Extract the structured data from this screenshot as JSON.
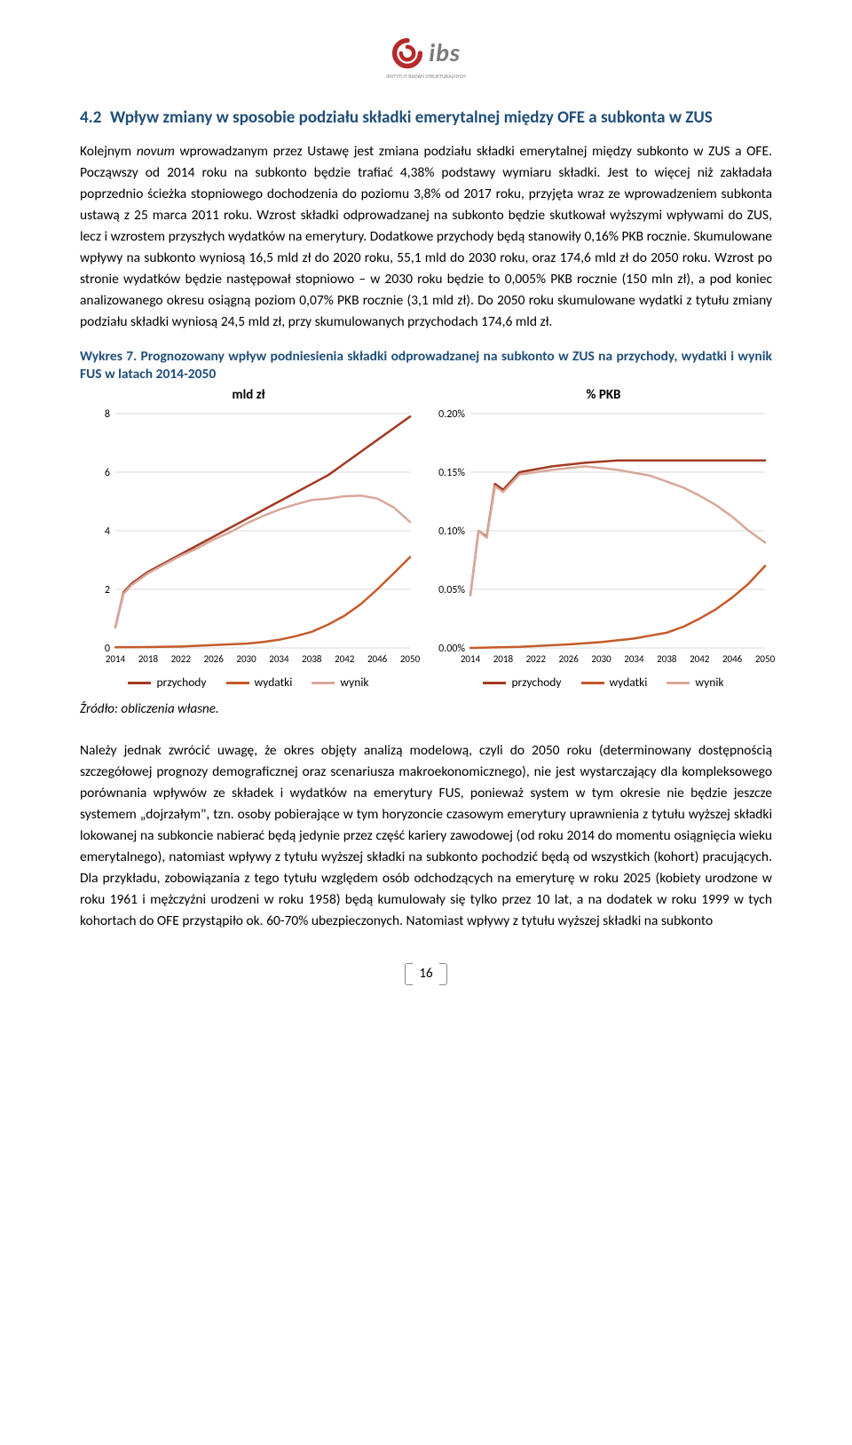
{
  "logo": {
    "text": "ibs",
    "subtitle": "INSTYTUT BADAŃ STRUKTURALNYCH"
  },
  "section": {
    "number": "4.2",
    "title": "Wpływ zmiany w sposobie podziału składki emerytalnej między OFE a subkonta w ZUS"
  },
  "para1_pre": "Kolejnym ",
  "para1_italic": "novum",
  "para1_post": " wprowadzanym przez Ustawę jest zmiana podziału składki emerytalnej między subkonto w ZUS a OFE. Począwszy od 2014 roku na subkonto będzie trafiać 4,38% podstawy wymiaru składki. Jest to więcej niż zakładała poprzednio ścieżka stopniowego dochodzenia do poziomu 3,8% od 2017 roku, przyjęta wraz ze wprowadzeniem subkonta ustawą z 25 marca 2011 roku. Wzrost składki odprowadzanej na subkonto będzie skutkował wyższymi wpływami do ZUS, lecz i wzrostem przyszłych wydatków na emerytury. Dodatkowe przychody będą stanowiły 0,16% PKB rocznie. Skumulowane wpływy na subkonto wyniosą 16,5 mld zł do 2020 roku, 55,1 mld do 2030 roku, oraz 174,6 mld zł do 2050 roku. Wzrost po stronie wydatków będzie następował stopniowo – w 2030 roku będzie to 0,005% PKB rocznie (150 mln zł), a pod koniec analizowanego okresu osiągną poziom 0,07% PKB rocznie (3,1 mld zł). Do 2050 roku skumulowane wydatki z tytułu zmiany podziału składki wyniosą 24,5 mld zł, przy skumulowanych przychodach 174,6 mld zł.",
  "figure": {
    "label": "Wykres 7. Prognozowany wpływ podniesienia składki odprowadzanej na subkonto w ZUS na przychody, wydatki i wynik FUS w latach 2014-2050",
    "left_subtitle": "mld zł",
    "right_subtitle": "% PKB"
  },
  "chart_left": {
    "type": "line",
    "xlim": [
      2014,
      2050
    ],
    "ylim": [
      0,
      8
    ],
    "yticks": [
      0,
      2,
      4,
      6,
      8
    ],
    "xticks": [
      2014,
      2018,
      2022,
      2026,
      2030,
      2034,
      2038,
      2042,
      2046,
      2050
    ],
    "grid_color": "#d9d9d9",
    "background": "#ffffff",
    "line_width": 2.5,
    "series": [
      {
        "name": "przychody",
        "color": "#a13a21",
        "x": [
          2014,
          2015,
          2016,
          2018,
          2020,
          2022,
          2024,
          2026,
          2028,
          2030,
          2032,
          2034,
          2036,
          2038,
          2040,
          2042,
          2044,
          2046,
          2048,
          2050
        ],
        "y": [
          0.7,
          1.9,
          2.2,
          2.6,
          2.9,
          3.2,
          3.5,
          3.8,
          4.1,
          4.4,
          4.7,
          5.0,
          5.3,
          5.6,
          5.9,
          6.3,
          6.7,
          7.1,
          7.5,
          7.9
        ]
      },
      {
        "name": "wydatki",
        "color": "#c55a2a",
        "x": [
          2014,
          2018,
          2022,
          2026,
          2030,
          2032,
          2034,
          2036,
          2038,
          2040,
          2042,
          2044,
          2046,
          2048,
          2050
        ],
        "y": [
          0.02,
          0.03,
          0.05,
          0.1,
          0.15,
          0.2,
          0.28,
          0.4,
          0.55,
          0.8,
          1.1,
          1.5,
          2.0,
          2.55,
          3.1
        ]
      },
      {
        "name": "wynik",
        "color": "#d9a79a",
        "x": [
          2014,
          2015,
          2016,
          2018,
          2020,
          2022,
          2024,
          2026,
          2028,
          2030,
          2032,
          2034,
          2036,
          2038,
          2040,
          2042,
          2044,
          2046,
          2048,
          2050
        ],
        "y": [
          0.7,
          1.85,
          2.15,
          2.55,
          2.85,
          3.15,
          3.4,
          3.7,
          3.95,
          4.25,
          4.5,
          4.72,
          4.9,
          5.05,
          5.1,
          5.18,
          5.2,
          5.1,
          4.8,
          4.3
        ]
      }
    ]
  },
  "chart_right": {
    "type": "line",
    "xlim": [
      2014,
      2050
    ],
    "ylim": [
      0,
      0.2
    ],
    "yticks": [
      0.0,
      0.05,
      0.1,
      0.15,
      0.2
    ],
    "ytick_labels": [
      "0.00%",
      "0.05%",
      "0.10%",
      "0.15%",
      "0.20%"
    ],
    "xticks": [
      2014,
      2018,
      2022,
      2026,
      2030,
      2034,
      2038,
      2042,
      2046,
      2050
    ],
    "grid_color": "#d9d9d9",
    "background": "#ffffff",
    "line_width": 2.5,
    "series": [
      {
        "name": "przychody",
        "color": "#a13a21",
        "x": [
          2014,
          2015,
          2016,
          2017,
          2018,
          2020,
          2024,
          2028,
          2032,
          2036,
          2040,
          2044,
          2048,
          2050
        ],
        "y": [
          0.045,
          0.1,
          0.095,
          0.14,
          0.135,
          0.15,
          0.155,
          0.158,
          0.16,
          0.16,
          0.16,
          0.16,
          0.16,
          0.16
        ]
      },
      {
        "name": "wydatki",
        "color": "#c55a2a",
        "x": [
          2014,
          2020,
          2026,
          2030,
          2034,
          2038,
          2040,
          2042,
          2044,
          2046,
          2048,
          2050
        ],
        "y": [
          0.0,
          0.001,
          0.003,
          0.005,
          0.008,
          0.013,
          0.018,
          0.025,
          0.033,
          0.043,
          0.055,
          0.07
        ]
      },
      {
        "name": "wynik",
        "color": "#d9a79a",
        "x": [
          2014,
          2015,
          2016,
          2017,
          2018,
          2020,
          2024,
          2028,
          2032,
          2036,
          2038,
          2040,
          2042,
          2044,
          2046,
          2048,
          2050
        ],
        "y": [
          0.045,
          0.1,
          0.094,
          0.138,
          0.133,
          0.148,
          0.152,
          0.155,
          0.152,
          0.147,
          0.142,
          0.137,
          0.13,
          0.122,
          0.112,
          0.1,
          0.09
        ]
      }
    ]
  },
  "legend": {
    "items": [
      {
        "label": "przychody",
        "color": "#a13a21"
      },
      {
        "label": "wydatki",
        "color": "#c55a2a"
      },
      {
        "label": "wynik",
        "color": "#d9a79a"
      }
    ]
  },
  "source": "Źródło: obliczenia własne.",
  "para2": "Należy jednak zwrócić uwagę, że okres objęty analizą modelową, czyli do 2050 roku (determinowany dostępnością szczegółowej prognozy demograficznej oraz scenariusza makroekonomicznego), nie jest wystarczający dla kompleksowego porównania wpływów ze składek i wydatków na emerytury FUS, ponieważ system w tym okresie nie będzie jeszcze systemem „dojrzałym\", tzn. osoby pobierające w tym horyzoncie czasowym emerytury uprawnienia z tytułu wyższej składki lokowanej na subkoncie nabierać będą jedynie przez część kariery zawodowej (od roku 2014 do momentu osiągnięcia wieku emerytalnego), natomiast wpływy z tytułu wyższej składki na subkonto pochodzić będą od wszystkich (kohort) pracujących. Dla przykładu, zobowiązania z tego tytułu względem osób odchodzących na emeryturę w roku 2025 (kobiety urodzone w roku 1961 i mężczyźni urodzeni w roku 1958) będą kumulowały się tylko przez 10 lat, a na dodatek w roku 1999 w tych kohortach do OFE przystąpiło ok. 60-70% ubezpieczonych. Natomiast wpływy z tytułu wyższej składki na subkonto",
  "page_number": "16"
}
